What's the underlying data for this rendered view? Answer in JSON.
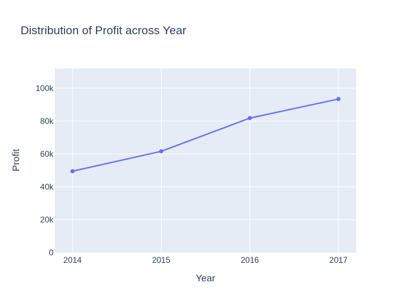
{
  "colors": {
    "plot_background": "#e5ecf6",
    "grid": "#ffffff",
    "text": "#2a3f5f",
    "series": "#636efa"
  },
  "chart_data": {
    "type": "line",
    "title": "Distribution of Profit across Year",
    "xlabel": "Year",
    "ylabel": "Profit",
    "x": [
      2014,
      2015,
      2016,
      2017
    ],
    "x_tick_labels": [
      "2014",
      "2015",
      "2016",
      "2017"
    ],
    "xlim": [
      2013.8,
      2017.2
    ],
    "series": [
      {
        "values": [
          49500,
          61600,
          81800,
          93400
        ],
        "markers": true
      }
    ],
    "ylim": [
      0,
      112000
    ],
    "y_ticks": [
      0,
      20000,
      40000,
      60000,
      80000,
      100000
    ],
    "y_tick_labels": [
      "0",
      "20k",
      "40k",
      "60k",
      "80k",
      "100k"
    ],
    "grid": true,
    "legend": "none"
  }
}
